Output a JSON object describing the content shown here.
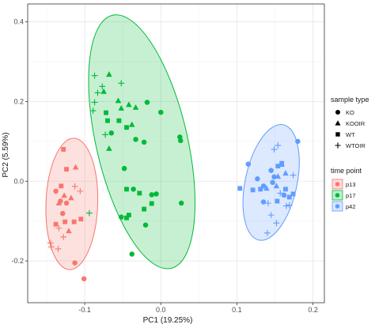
{
  "chart_data": {
    "type": "scatter",
    "title": "",
    "xlabel": "PC1 (19.25%)",
    "ylabel": "PC2 (5.59%)",
    "xlim": [
      -0.175,
      0.215
    ],
    "ylim": [
      -0.305,
      0.445
    ],
    "x_ticks": [
      -0.1,
      0.0,
      0.1,
      0.2
    ],
    "x_tick_labels": [
      "-0.1",
      "0.0",
      "0.1",
      "0.2"
    ],
    "y_ticks": [
      -0.2,
      0.0,
      0.2,
      0.4
    ],
    "y_tick_labels": [
      "-0.2",
      "0.0",
      "0.2",
      "0.4"
    ],
    "grid": true,
    "legend_position": "right",
    "color_legend": {
      "title": "time point",
      "entries": [
        {
          "label": "p13",
          "color": "#F8766D"
        },
        {
          "label": "p17",
          "color": "#00BA38"
        },
        {
          "label": "p42",
          "color": "#619CFF"
        }
      ]
    },
    "shape_legend": {
      "title": "sample type",
      "entries": [
        {
          "label": "KO",
          "shape": "circle"
        },
        {
          "label": "KOOIR",
          "shape": "triangle"
        },
        {
          "label": "WT",
          "shape": "square"
        },
        {
          "label": "WTOIR",
          "shape": "plus"
        }
      ]
    },
    "ellipses": [
      {
        "group": "p13",
        "center": [
          -0.117,
          -0.057
        ],
        "semi_axes": [
          0.034,
          0.165
        ],
        "angle_deg": 2
      },
      {
        "group": "p17",
        "center": [
          -0.025,
          0.099
        ],
        "semi_axes": [
          0.06,
          0.326
        ],
        "angle_deg": -13
      },
      {
        "group": "p42",
        "center": [
          0.145,
          -0.003
        ],
        "semi_axes": [
          0.034,
          0.148
        ],
        "angle_deg": 12
      }
    ],
    "series": [
      {
        "group": "p13",
        "points": [
          {
            "x": -0.138,
            "y": -0.025,
            "shape": "circle"
          },
          {
            "x": -0.132,
            "y": -0.05,
            "shape": "circle"
          },
          {
            "x": -0.124,
            "y": -0.055,
            "shape": "circle"
          },
          {
            "x": -0.129,
            "y": -0.081,
            "shape": "circle"
          },
          {
            "x": -0.101,
            "y": -0.245,
            "shape": "circle"
          },
          {
            "x": -0.113,
            "y": -0.205,
            "shape": "circle"
          },
          {
            "x": -0.127,
            "y": -0.036,
            "shape": "triangle"
          },
          {
            "x": -0.134,
            "y": -0.055,
            "shape": "triangle"
          },
          {
            "x": -0.118,
            "y": -0.042,
            "shape": "triangle"
          },
          {
            "x": -0.121,
            "y": -0.125,
            "shape": "triangle"
          },
          {
            "x": -0.112,
            "y": 0.035,
            "shape": "triangle"
          },
          {
            "x": -0.128,
            "y": 0.08,
            "shape": "square"
          },
          {
            "x": -0.124,
            "y": 0.03,
            "shape": "square"
          },
          {
            "x": -0.131,
            "y": -0.012,
            "shape": "square"
          },
          {
            "x": -0.126,
            "y": -0.102,
            "shape": "square"
          },
          {
            "x": -0.114,
            "y": -0.102,
            "shape": "square"
          },
          {
            "x": -0.138,
            "y": -0.108,
            "shape": "square"
          },
          {
            "x": -0.105,
            "y": -0.095,
            "shape": "square"
          },
          {
            "x": -0.113,
            "y": -0.013,
            "shape": "plus"
          },
          {
            "x": -0.106,
            "y": -0.025,
            "shape": "plus"
          },
          {
            "x": -0.134,
            "y": -0.118,
            "shape": "plus"
          },
          {
            "x": -0.128,
            "y": -0.14,
            "shape": "plus"
          },
          {
            "x": -0.145,
            "y": -0.155,
            "shape": "plus"
          },
          {
            "x": -0.135,
            "y": -0.17,
            "shape": "plus"
          },
          {
            "x": -0.144,
            "y": -0.165,
            "shape": "plus"
          }
        ]
      },
      {
        "group": "p17",
        "points": [
          {
            "x": 0.0,
            "y": 0.173,
            "shape": "circle"
          },
          {
            "x": -0.018,
            "y": 0.198,
            "shape": "circle"
          },
          {
            "x": -0.065,
            "y": 0.121,
            "shape": "circle"
          },
          {
            "x": -0.022,
            "y": 0.098,
            "shape": "circle"
          },
          {
            "x": -0.033,
            "y": 0.105,
            "shape": "circle"
          },
          {
            "x": -0.048,
            "y": 0.032,
            "shape": "circle"
          },
          {
            "x": -0.036,
            "y": -0.02,
            "shape": "circle"
          },
          {
            "x": -0.012,
            "y": -0.034,
            "shape": "circle"
          },
          {
            "x": -0.006,
            "y": -0.032,
            "shape": "circle"
          },
          {
            "x": 0.027,
            "y": -0.055,
            "shape": "circle"
          },
          {
            "x": 0.026,
            "y": 0.102,
            "shape": "circle"
          },
          {
            "x": 0.025,
            "y": 0.111,
            "shape": "circle"
          },
          {
            "x": -0.038,
            "y": -0.183,
            "shape": "circle"
          },
          {
            "x": -0.02,
            "y": -0.11,
            "shape": "circle"
          },
          {
            "x": -0.052,
            "y": -0.09,
            "shape": "circle"
          },
          {
            "x": -0.068,
            "y": 0.082,
            "shape": "triangle"
          },
          {
            "x": -0.075,
            "y": 0.225,
            "shape": "triangle"
          },
          {
            "x": -0.056,
            "y": 0.202,
            "shape": "triangle"
          },
          {
            "x": -0.052,
            "y": 0.183,
            "shape": "triangle"
          },
          {
            "x": -0.042,
            "y": 0.192,
            "shape": "triangle"
          },
          {
            "x": -0.068,
            "y": 0.268,
            "shape": "triangle"
          },
          {
            "x": -0.038,
            "y": 0.142,
            "shape": "triangle"
          },
          {
            "x": -0.033,
            "y": 0.185,
            "shape": "triangle"
          },
          {
            "x": -0.072,
            "y": 0.172,
            "shape": "square"
          },
          {
            "x": -0.07,
            "y": 0.152,
            "shape": "square"
          },
          {
            "x": -0.055,
            "y": 0.152,
            "shape": "square"
          },
          {
            "x": -0.045,
            "y": 0.135,
            "shape": "square"
          },
          {
            "x": -0.045,
            "y": -0.02,
            "shape": "square"
          },
          {
            "x": -0.028,
            "y": -0.03,
            "shape": "square"
          },
          {
            "x": -0.042,
            "y": -0.085,
            "shape": "square"
          },
          {
            "x": -0.022,
            "y": -0.07,
            "shape": "square"
          },
          {
            "x": -0.012,
            "y": -0.056,
            "shape": "square"
          },
          {
            "x": -0.045,
            "y": -0.092,
            "shape": "square"
          },
          {
            "x": -0.087,
            "y": 0.265,
            "shape": "plus"
          },
          {
            "x": -0.077,
            "y": 0.238,
            "shape": "plus"
          },
          {
            "x": -0.083,
            "y": 0.222,
            "shape": "plus"
          },
          {
            "x": -0.073,
            "y": 0.117,
            "shape": "plus"
          },
          {
            "x": -0.052,
            "y": 0.246,
            "shape": "plus"
          },
          {
            "x": -0.087,
            "y": 0.198,
            "shape": "plus"
          },
          {
            "x": -0.089,
            "y": 0.177,
            "shape": "plus"
          },
          {
            "x": -0.094,
            "y": -0.08,
            "shape": "plus"
          }
        ]
      },
      {
        "group": "p42",
        "points": [
          {
            "x": 0.115,
            "y": 0.043,
            "shape": "circle"
          },
          {
            "x": 0.127,
            "y": 0.006,
            "shape": "circle"
          },
          {
            "x": 0.135,
            "y": -0.012,
            "shape": "circle"
          },
          {
            "x": 0.145,
            "y": 0.027,
            "shape": "circle"
          },
          {
            "x": 0.149,
            "y": 0.011,
            "shape": "circle"
          },
          {
            "x": 0.147,
            "y": -0.003,
            "shape": "circle"
          },
          {
            "x": 0.162,
            "y": -0.035,
            "shape": "circle"
          },
          {
            "x": 0.18,
            "y": 0.1,
            "shape": "circle"
          },
          {
            "x": 0.135,
            "y": -0.052,
            "shape": "circle"
          },
          {
            "x": 0.159,
            "y": 0.042,
            "shape": "triangle"
          },
          {
            "x": 0.164,
            "y": 0.02,
            "shape": "triangle"
          },
          {
            "x": 0.154,
            "y": 0.012,
            "shape": "triangle"
          },
          {
            "x": 0.152,
            "y": -0.012,
            "shape": "triangle"
          },
          {
            "x": 0.139,
            "y": -0.018,
            "shape": "triangle"
          },
          {
            "x": 0.104,
            "y": -0.018,
            "shape": "square"
          },
          {
            "x": 0.131,
            "y": -0.02,
            "shape": "square"
          },
          {
            "x": 0.121,
            "y": -0.022,
            "shape": "square"
          },
          {
            "x": 0.154,
            "y": 0.038,
            "shape": "square"
          },
          {
            "x": 0.159,
            "y": 0.045,
            "shape": "square"
          },
          {
            "x": 0.164,
            "y": -0.02,
            "shape": "square"
          },
          {
            "x": 0.169,
            "y": -0.04,
            "shape": "square"
          },
          {
            "x": 0.174,
            "y": -0.032,
            "shape": "square"
          },
          {
            "x": 0.153,
            "y": -0.05,
            "shape": "square"
          },
          {
            "x": 0.149,
            "y": 0.08,
            "shape": "plus"
          },
          {
            "x": 0.154,
            "y": 0.09,
            "shape": "plus"
          },
          {
            "x": 0.174,
            "y": 0.015,
            "shape": "plus"
          },
          {
            "x": 0.169,
            "y": -0.06,
            "shape": "plus"
          },
          {
            "x": 0.141,
            "y": -0.055,
            "shape": "plus"
          },
          {
            "x": 0.152,
            "y": -0.105,
            "shape": "plus"
          },
          {
            "x": 0.165,
            "y": -0.062,
            "shape": "plus"
          },
          {
            "x": 0.145,
            "y": -0.085,
            "shape": "plus"
          },
          {
            "x": 0.157,
            "y": -0.03,
            "shape": "plus"
          },
          {
            "x": 0.14,
            "y": -0.13,
            "shape": "plus"
          }
        ]
      }
    ]
  }
}
